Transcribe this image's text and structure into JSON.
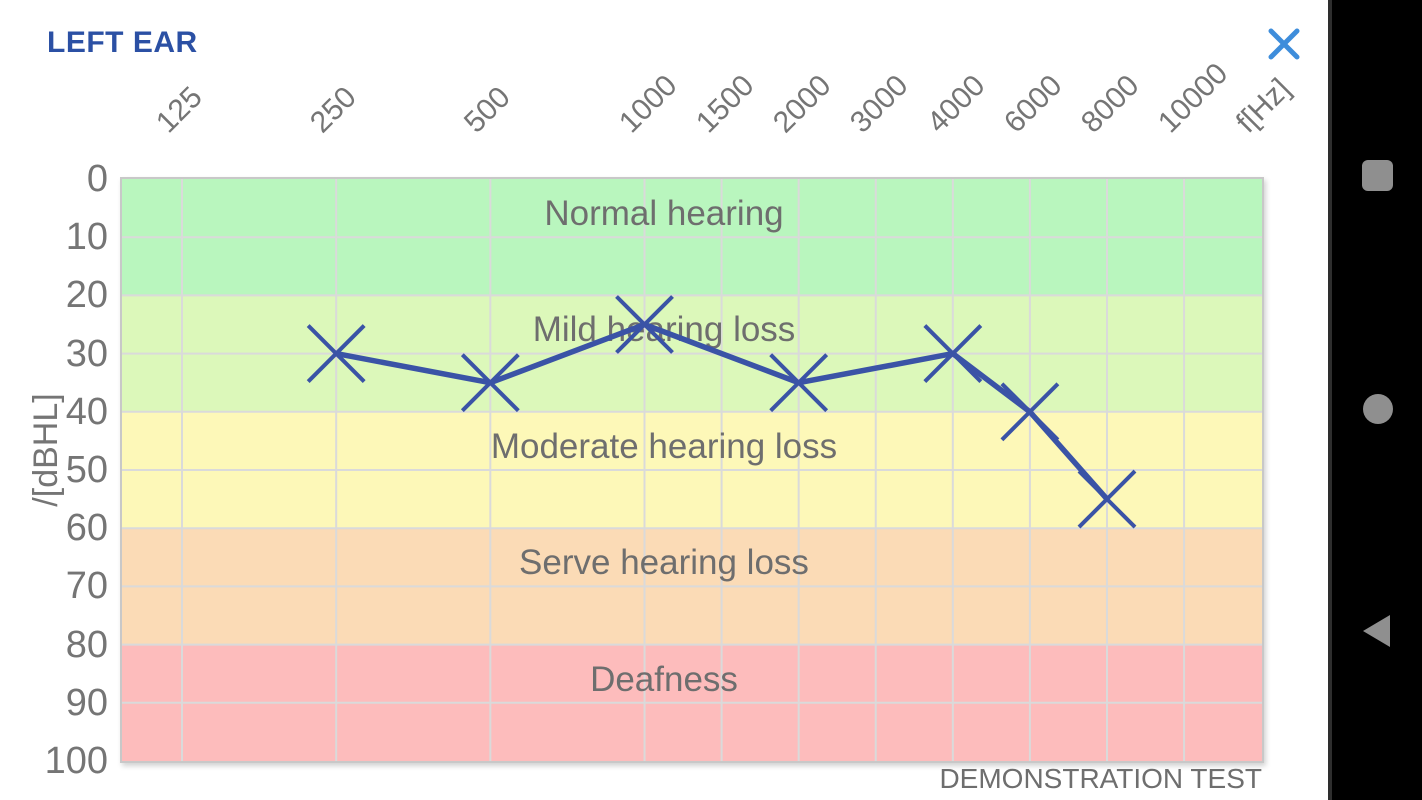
{
  "header": {
    "title": "LEFT EAR"
  },
  "chart_data": {
    "type": "line",
    "title": "",
    "x_tick_labels": [
      "125",
      "250",
      "500",
      "1000",
      "1500",
      "2000",
      "3000",
      "4000",
      "6000",
      "8000",
      "10000"
    ],
    "x_axis_suffix_label": "f[Hz]",
    "y_axis_label": "/[dBHL]",
    "y_tick_labels": [
      "0",
      "10",
      "20",
      "30",
      "40",
      "50",
      "60",
      "70",
      "80",
      "90",
      "100"
    ],
    "y_range": [
      0,
      100
    ],
    "grid": true,
    "legend": "none",
    "zones": [
      {
        "label": "Normal hearing",
        "from_db": 0,
        "to_db": 20,
        "color": "#b9f6be"
      },
      {
        "label": "Mild hearing loss",
        "from_db": 20,
        "to_db": 40,
        "color": "#dcf8ba"
      },
      {
        "label": "Moderate hearing loss",
        "from_db": 40,
        "to_db": 60,
        "color": "#fdf8b8"
      },
      {
        "label": "Serve hearing loss",
        "from_db": 60,
        "to_db": 80,
        "color": "#fbdbb6"
      },
      {
        "label": "Deafness",
        "from_db": 80,
        "to_db": 100,
        "color": "#fdbcbc"
      }
    ],
    "series": [
      {
        "name": "left ear hearing threshold",
        "marker": "x",
        "color": "#3a53a6",
        "points": [
          {
            "freq_hz": 250,
            "db_hl": 30
          },
          {
            "freq_hz": 500,
            "db_hl": 35
          },
          {
            "freq_hz": 1000,
            "db_hl": 25
          },
          {
            "freq_hz": 2000,
            "db_hl": 35
          },
          {
            "freq_hz": 4000,
            "db_hl": 30
          },
          {
            "freq_hz": 6000,
            "db_hl": 40
          },
          {
            "freq_hz": 8000,
            "db_hl": 55
          }
        ]
      }
    ],
    "footer_note": "DEMONSTRATION TEST"
  },
  "navbar": {
    "icons": [
      {
        "name": "recents",
        "shape": "square"
      },
      {
        "name": "home",
        "shape": "circle"
      },
      {
        "name": "back",
        "shape": "triangle-left"
      }
    ]
  },
  "colors": {
    "title": "#2b50a4",
    "close_icon": "#3e8ddb",
    "axis_text": "#757575",
    "zone_text": "#6e6e6e",
    "gridline": "#dadada",
    "plot_border": "#c8c8c8",
    "series_line": "#3a53a6",
    "nav_icon": "#8f8f8f",
    "nav_bg": "#000000"
  }
}
